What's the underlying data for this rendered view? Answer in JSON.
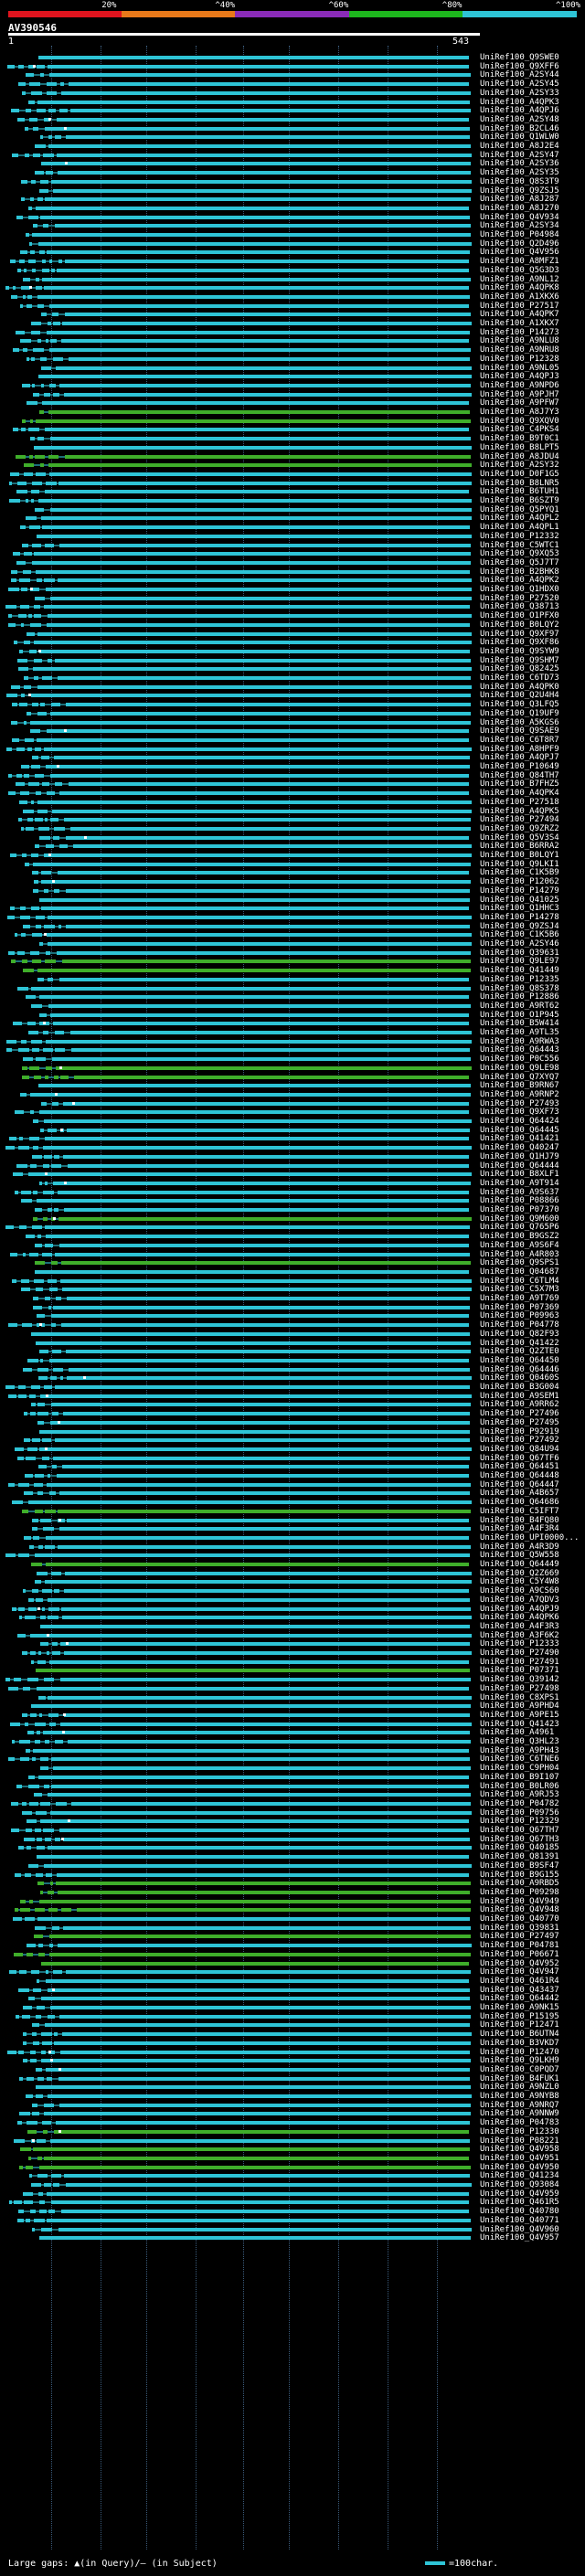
{
  "scale": {
    "labels": [
      "20%",
      "^40%",
      "^60%",
      "^80%",
      "^100%"
    ],
    "colors": [
      "#e0141e",
      "#e8791a",
      "#8a2bb8",
      "#1db61d",
      "#2ec4d6"
    ]
  },
  "title": "AV390546",
  "ruler": {
    "start": "1",
    "end": "543"
  },
  "colors": {
    "cyan": "#2ec4d6",
    "green": "#3fae2a",
    "bg": "#000000"
  },
  "hits": [
    {
      "label": "UniRef100_Q9SWE0",
      "c": "c"
    },
    {
      "label": "UniRef100_Q9XFF6",
      "c": "c"
    },
    {
      "label": "UniRef100_A2SY44",
      "c": "c"
    },
    {
      "label": "UniRef100_A2SY45",
      "c": "c"
    },
    {
      "label": "UniRef100_A2SY33",
      "c": "c"
    },
    {
      "label": "UniRef100_A4QPK3",
      "c": "c"
    },
    {
      "label": "UniRef100_A4QPJ6",
      "c": "c"
    },
    {
      "label": "UniRef100_A2SY48",
      "c": "c"
    },
    {
      "label": "UniRef100_B2CL46",
      "c": "c"
    },
    {
      "label": "UniRef100_Q1WLW0",
      "c": "c"
    },
    {
      "label": "UniRef100_A8J2E4",
      "c": "c"
    },
    {
      "label": "UniRef100_A2SY47",
      "c": "c"
    },
    {
      "label": "UniRef100_A2SY36",
      "c": "c"
    },
    {
      "label": "UniRef100_A2SY35",
      "c": "c"
    },
    {
      "label": "UniRef100_Q8S3T9",
      "c": "c"
    },
    {
      "label": "UniRef100_Q9ZSJ5",
      "c": "c"
    },
    {
      "label": "UniRef100_A8J287",
      "c": "c"
    },
    {
      "label": "UniRef100_A8J270",
      "c": "c"
    },
    {
      "label": "UniRef100_Q4V934",
      "c": "c"
    },
    {
      "label": "UniRef100_A2SY34",
      "c": "c"
    },
    {
      "label": "UniRef100_P04984",
      "c": "c"
    },
    {
      "label": "UniRef100_Q2D496",
      "c": "c"
    },
    {
      "label": "UniRef100_Q4V956",
      "c": "c"
    },
    {
      "label": "UniRef100_A8MFZ1",
      "c": "c"
    },
    {
      "label": "UniRef100_Q5G3D3",
      "c": "c"
    },
    {
      "label": "UniRef100_A9NL12",
      "c": "c"
    },
    {
      "label": "UniRef100_A4QPK8",
      "c": "c"
    },
    {
      "label": "UniRef100_A1XKX6",
      "c": "c"
    },
    {
      "label": "UniRef100_P27517",
      "c": "c"
    },
    {
      "label": "UniRef100_A4QPK7",
      "c": "c"
    },
    {
      "label": "UniRef100_A1XKX7",
      "c": "c"
    },
    {
      "label": "UniRef100_P14273",
      "c": "c"
    },
    {
      "label": "UniRef100_A9NLU8",
      "c": "c"
    },
    {
      "label": "UniRef100_A9NRU8",
      "c": "c"
    },
    {
      "label": "UniRef100_P12328",
      "c": "c"
    },
    {
      "label": "UniRef100_A9NL05",
      "c": "c"
    },
    {
      "label": "UniRef100_A4QPJ3",
      "c": "c"
    },
    {
      "label": "UniRef100_A9NPD6",
      "c": "c"
    },
    {
      "label": "UniRef100_A9PJH7",
      "c": "c"
    },
    {
      "label": "UniRef100_A9PFW7",
      "c": "c"
    },
    {
      "label": "UniRef100_A8J7Y3",
      "c": "g"
    },
    {
      "label": "UniRef100_Q9XQV0",
      "c": "g"
    },
    {
      "label": "UniRef100_C4PKS4",
      "c": "c"
    },
    {
      "label": "UniRef100_B9T0C1",
      "c": "c"
    },
    {
      "label": "UniRef100_B8LPT5",
      "c": "c"
    },
    {
      "label": "UniRef100_A8JDU4",
      "c": "g"
    },
    {
      "label": "UniRef100_A2SY32",
      "c": "g"
    },
    {
      "label": "UniRef100_D0F1G5",
      "c": "c"
    },
    {
      "label": "UniRef100_B8LNR5",
      "c": "c"
    },
    {
      "label": "UniRef100_B6TUH1",
      "c": "c"
    },
    {
      "label": "UniRef100_B6SZT9",
      "c": "c"
    },
    {
      "label": "UniRef100_Q5PYQ1",
      "c": "c"
    },
    {
      "label": "UniRef100_A4QPL2",
      "c": "c"
    },
    {
      "label": "UniRef100_A4QPL1",
      "c": "c"
    },
    {
      "label": "UniRef100_P12332",
      "c": "c"
    },
    {
      "label": "UniRef100_C5WTC1",
      "c": "c"
    },
    {
      "label": "UniRef100_Q9XQ53",
      "c": "c"
    },
    {
      "label": "UniRef100_Q5J7T7",
      "c": "c"
    },
    {
      "label": "UniRef100_B2BHK8",
      "c": "c"
    },
    {
      "label": "UniRef100_A4QPK2",
      "c": "c"
    },
    {
      "label": "UniRef100_Q1HDX0",
      "c": "c"
    },
    {
      "label": "UniRef100_P27520",
      "c": "c"
    },
    {
      "label": "UniRef100_Q38713",
      "c": "c"
    },
    {
      "label": "UniRef100_O1PFX0",
      "c": "c"
    },
    {
      "label": "UniRef100_B0LQY2",
      "c": "c"
    },
    {
      "label": "UniRef100_Q9XF97",
      "c": "c"
    },
    {
      "label": "UniRef100_Q9XF86",
      "c": "c"
    },
    {
      "label": "UniRef100_Q9SYW9",
      "c": "c"
    },
    {
      "label": "UniRef100_Q9SHM7",
      "c": "c"
    },
    {
      "label": "UniRef100_Q82425",
      "c": "c"
    },
    {
      "label": "UniRef100_C6TD73",
      "c": "c"
    },
    {
      "label": "UniRef100_A4QPK0",
      "c": "c"
    },
    {
      "label": "UniRef100_Q2U4H4",
      "c": "c"
    },
    {
      "label": "UniRef100_Q3LFQ5",
      "c": "c"
    },
    {
      "label": "UniRef100_Q19UF9",
      "c": "c"
    },
    {
      "label": "UniRef100_A5KGS6",
      "c": "c"
    },
    {
      "label": "UniRef100_Q9SAE9",
      "c": "c"
    },
    {
      "label": "UniRef100_C6T8R7",
      "c": "c"
    },
    {
      "label": "UniRef100_A8HPF9",
      "c": "c"
    },
    {
      "label": "UniRef100_A4QPJ7",
      "c": "c"
    },
    {
      "label": "UniRef100_P10649",
      "c": "c"
    },
    {
      "label": "UniRef100_Q84TH7",
      "c": "c"
    },
    {
      "label": "UniRef100_B7FHZ5",
      "c": "c"
    },
    {
      "label": "UniRef100_A4QPK4",
      "c": "c"
    },
    {
      "label": "UniRef100_P27518",
      "c": "c"
    },
    {
      "label": "UniRef100_A4QPK5",
      "c": "c"
    },
    {
      "label": "UniRef100_P27494",
      "c": "c"
    },
    {
      "label": "UniRef100_Q9ZRZ2",
      "c": "c"
    },
    {
      "label": "UniRef100_Q5V3S4",
      "c": "c"
    },
    {
      "label": "UniRef100_B6RRA2",
      "c": "c"
    },
    {
      "label": "UniRef100_B0LQY1",
      "c": "c"
    },
    {
      "label": "UniRef100_Q9LKI1",
      "c": "c"
    },
    {
      "label": "UniRef100_C1K5B9",
      "c": "c"
    },
    {
      "label": "UniRef100_P12062",
      "c": "c"
    },
    {
      "label": "UniRef100_P14279",
      "c": "c"
    },
    {
      "label": "UniRef100_Q41025",
      "c": "c"
    },
    {
      "label": "UniRef100_Q1HHC3",
      "c": "c"
    },
    {
      "label": "UniRef100_P14278",
      "c": "c"
    },
    {
      "label": "UniRef100_Q9ZSJ4",
      "c": "c"
    },
    {
      "label": "UniRef100_C1K5B6",
      "c": "c"
    },
    {
      "label": "UniRef100_A2SY46",
      "c": "c"
    },
    {
      "label": "UniRef100_Q39631",
      "c": "c"
    },
    {
      "label": "UniRef100_Q9LE97",
      "c": "g"
    },
    {
      "label": "UniRef100_Q41449",
      "c": "g"
    },
    {
      "label": "UniRef100_P12335",
      "c": "c"
    },
    {
      "label": "UniRef100_Q8S378",
      "c": "c"
    },
    {
      "label": "UniRef100_P12886",
      "c": "c"
    },
    {
      "label": "UniRef100_A9RT62",
      "c": "c"
    },
    {
      "label": "UniRef100_O1P945",
      "c": "c"
    },
    {
      "label": "UniRef100_B5W414",
      "c": "c"
    },
    {
      "label": "UniRef100_A9TL35",
      "c": "c"
    },
    {
      "label": "UniRef100_A9RWA3",
      "c": "c"
    },
    {
      "label": "UniRef100_Q64443",
      "c": "c"
    },
    {
      "label": "UniRef100_P0C556",
      "c": "c"
    },
    {
      "label": "UniRef100_Q9LE98",
      "c": "g"
    },
    {
      "label": "UniRef100_Q7XYQ7",
      "c": "g"
    },
    {
      "label": "UniRef100_B9RN67",
      "c": "c"
    },
    {
      "label": "UniRef100_A9RNP2",
      "c": "c"
    },
    {
      "label": "UniRef100_P27493",
      "c": "c"
    },
    {
      "label": "UniRef100_Q9XF73",
      "c": "c"
    },
    {
      "label": "UniRef100_Q64424",
      "c": "c"
    },
    {
      "label": "UniRef100_Q64445",
      "c": "c"
    },
    {
      "label": "UniRef100_Q41421",
      "c": "c"
    },
    {
      "label": "UniRef100_Q40247",
      "c": "c"
    },
    {
      "label": "UniRef100_Q1HJ79",
      "c": "c"
    },
    {
      "label": "UniRef100_Q64444",
      "c": "c"
    },
    {
      "label": "UniRef100_B8XLF1",
      "c": "c"
    },
    {
      "label": "UniRef100_A9T914",
      "c": "c"
    },
    {
      "label": "UniRef100_A9S637",
      "c": "c"
    },
    {
      "label": "UniRef100_P08866",
      "c": "c"
    },
    {
      "label": "UniRef100_P07370",
      "c": "c"
    },
    {
      "label": "UniRef100_Q9M600",
      "c": "g"
    },
    {
      "label": "UniRef100_Q765P6",
      "c": "c"
    },
    {
      "label": "UniRef100_B9GSZ2",
      "c": "c"
    },
    {
      "label": "UniRef100_A9S6F4",
      "c": "c"
    },
    {
      "label": "UniRef100_A4R803",
      "c": "c"
    },
    {
      "label": "UniRef100_Q9SPS1",
      "c": "g"
    },
    {
      "label": "UniRef100_Q04687",
      "c": "c"
    },
    {
      "label": "UniRef100_C6TLM4",
      "c": "c"
    },
    {
      "label": "UniRef100_C5X7M3",
      "c": "c"
    },
    {
      "label": "UniRef100_A9T769",
      "c": "c"
    },
    {
      "label": "UniRef100_P07369",
      "c": "c"
    },
    {
      "label": "UniRef100_P09963",
      "c": "c"
    },
    {
      "label": "UniRef100_P04778",
      "c": "c"
    },
    {
      "label": "UniRef100_Q82F93",
      "c": "c"
    },
    {
      "label": "UniRef100_Q41422",
      "c": "c"
    },
    {
      "label": "UniRef100_Q2ZTE0",
      "c": "c"
    },
    {
      "label": "UniRef100_Q64450",
      "c": "c"
    },
    {
      "label": "UniRef100_Q64446",
      "c": "c"
    },
    {
      "label": "UniRef100_Q0460S",
      "c": "c"
    },
    {
      "label": "UniRef100_B3G004",
      "c": "c"
    },
    {
      "label": "UniRef100_A9SEM1",
      "c": "c"
    },
    {
      "label": "UniRef100_A9RR62",
      "c": "c"
    },
    {
      "label": "UniRef100_P27496",
      "c": "c"
    },
    {
      "label": "UniRef100_P27495",
      "c": "c"
    },
    {
      "label": "UniRef100_P92919",
      "c": "c"
    },
    {
      "label": "UniRef100_P27492",
      "c": "c"
    },
    {
      "label": "UniRef100_Q84U94",
      "c": "c"
    },
    {
      "label": "UniRef100_Q67TF6",
      "c": "c"
    },
    {
      "label": "UniRef100_Q64451",
      "c": "c"
    },
    {
      "label": "UniRef100_Q64448",
      "c": "c"
    },
    {
      "label": "UniRef100_Q64447",
      "c": "c"
    },
    {
      "label": "UniRef100_A4B657",
      "c": "c"
    },
    {
      "label": "UniRef100_Q64686",
      "c": "c"
    },
    {
      "label": "UniRef100_C5IFT7",
      "c": "g"
    },
    {
      "label": "UniRef100_B4FQ80",
      "c": "c"
    },
    {
      "label": "UniRef100_A4F3R4",
      "c": "c"
    },
    {
      "label": "UniRef100_UPI0000...",
      "c": "c"
    },
    {
      "label": "UniRef100_A4R3D9",
      "c": "c"
    },
    {
      "label": "UniRef100_Q5W558",
      "c": "c"
    },
    {
      "label": "UniRef100_Q64449",
      "c": "g"
    },
    {
      "label": "UniRef100_Q2Z669",
      "c": "c"
    },
    {
      "label": "UniRef100_C5Y4W8",
      "c": "c"
    },
    {
      "label": "UniRef100_A9CS60",
      "c": "c"
    },
    {
      "label": "UniRef100_A7QDV3",
      "c": "c"
    },
    {
      "label": "UniRef100_A4QPJ9",
      "c": "c"
    },
    {
      "label": "UniRef100_A4QPK6",
      "c": "c"
    },
    {
      "label": "UniRef100_A4F3R3",
      "c": "c"
    },
    {
      "label": "UniRef100_A3F6K2",
      "c": "c"
    },
    {
      "label": "UniRef100_P12333",
      "c": "c"
    },
    {
      "label": "UniRef100_P27490",
      "c": "c"
    },
    {
      "label": "UniRef100_P27491",
      "c": "c"
    },
    {
      "label": "UniRef100_P07371",
      "c": "g"
    },
    {
      "label": "UniRef100_Q39142",
      "c": "c"
    },
    {
      "label": "UniRef100_P27498",
      "c": "c"
    },
    {
      "label": "UniRef100_C8XPS1",
      "c": "c"
    },
    {
      "label": "UniRef100_A9PHD4",
      "c": "c"
    },
    {
      "label": "UniRef100_A9PE15",
      "c": "c"
    },
    {
      "label": "UniRef100_Q41423",
      "c": "c"
    },
    {
      "label": "UniRef100_A4961",
      "c": "c"
    },
    {
      "label": "UniRef100_Q3HL23",
      "c": "c"
    },
    {
      "label": "UniRef100_A9PH43",
      "c": "c"
    },
    {
      "label": "UniRef100_C6TNE6",
      "c": "c"
    },
    {
      "label": "UniRef100_C9PH04",
      "c": "c"
    },
    {
      "label": "UniRef100_B9I107",
      "c": "c"
    },
    {
      "label": "UniRef100_B0LR06",
      "c": "c"
    },
    {
      "label": "UniRef100_A9RJ53",
      "c": "c"
    },
    {
      "label": "UniRef100_P04782",
      "c": "c"
    },
    {
      "label": "UniRef100_P09756",
      "c": "c"
    },
    {
      "label": "UniRef100_P12329",
      "c": "c"
    },
    {
      "label": "UniRef100_Q67TH7",
      "c": "c"
    },
    {
      "label": "UniRef100_Q67TH3",
      "c": "c"
    },
    {
      "label": "UniRef100_Q40185",
      "c": "c"
    },
    {
      "label": "UniRef100_Q81391",
      "c": "c"
    },
    {
      "label": "UniRef100_B9SF47",
      "c": "c"
    },
    {
      "label": "UniRef100_B9G155",
      "c": "c"
    },
    {
      "label": "UniRef100_A9RBD5",
      "c": "g"
    },
    {
      "label": "UniRef100_P09298",
      "c": "g"
    },
    {
      "label": "UniRef100_Q4V949",
      "c": "g"
    },
    {
      "label": "UniRef100_Q4V948",
      "c": "g"
    },
    {
      "label": "UniRef100_Q40770",
      "c": "c"
    },
    {
      "label": "UniRef100_Q39831",
      "c": "c"
    },
    {
      "label": "UniRef100_P27497",
      "c": "g"
    },
    {
      "label": "UniRef100_P04781",
      "c": "c"
    },
    {
      "label": "UniRef100_P06671",
      "c": "g"
    },
    {
      "label": "UniRef100_Q4V952",
      "c": "g"
    },
    {
      "label": "UniRef100_Q4V947",
      "c": "c"
    },
    {
      "label": "UniRef100_Q461R4",
      "c": "c"
    },
    {
      "label": "UniRef100_Q43437",
      "c": "c"
    },
    {
      "label": "UniRef100_Q64442",
      "c": "c"
    },
    {
      "label": "UniRef100_A9NK15",
      "c": "c"
    },
    {
      "label": "UniRef100_P15195",
      "c": "c"
    },
    {
      "label": "UniRef100_P12471",
      "c": "c"
    },
    {
      "label": "UniRef100_B6UTN4",
      "c": "c"
    },
    {
      "label": "UniRef100_B3VKD7",
      "c": "c"
    },
    {
      "label": "UniRef100_P12470",
      "c": "c"
    },
    {
      "label": "UniRef100_Q9LKH9",
      "c": "c"
    },
    {
      "label": "UniRef100_C0PQD7",
      "c": "c"
    },
    {
      "label": "UniRef100_B4FUK1",
      "c": "c"
    },
    {
      "label": "UniRef100_A9NZL0",
      "c": "c"
    },
    {
      "label": "UniRef100_A9NYB8",
      "c": "c"
    },
    {
      "label": "UniRef100_A9NRQ7",
      "c": "c"
    },
    {
      "label": "UniRef100_A9NNW9",
      "c": "c"
    },
    {
      "label": "UniRef100_P04783",
      "c": "c"
    },
    {
      "label": "UniRef100_P12330",
      "c": "g"
    },
    {
      "label": "UniRef100_P08221",
      "c": "c"
    },
    {
      "label": "UniRef100_Q4V958",
      "c": "g"
    },
    {
      "label": "UniRef100_Q4V951",
      "c": "g"
    },
    {
      "label": "UniRef100_Q4V950",
      "c": "g"
    },
    {
      "label": "UniRef100_Q41234",
      "c": "c"
    },
    {
      "label": "UniRef100_Q93084",
      "c": "c"
    },
    {
      "label": "UniRef100_Q4V959",
      "c": "c"
    },
    {
      "label": "UniRef100_Q461R5",
      "c": "c"
    },
    {
      "label": "UniRef100_Q40780",
      "c": "c"
    },
    {
      "label": "UniRef100_Q40771",
      "c": "c"
    },
    {
      "label": "UniRef100_Q4V960",
      "c": "c"
    },
    {
      "label": "UniRef100_Q4V957",
      "c": "c"
    }
  ],
  "legend": {
    "text": "Large gaps: ▲(in Query)/– (in Subject)",
    "scale": "=100char."
  }
}
